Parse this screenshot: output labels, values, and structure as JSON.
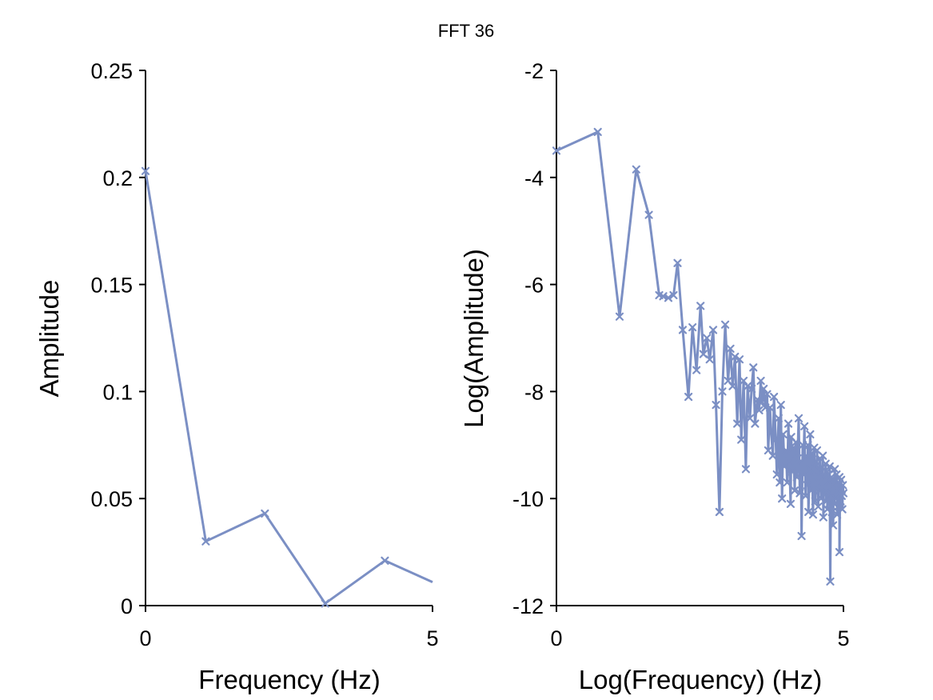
{
  "suptitle": "FFT 36",
  "colors": {
    "series": "#7b8fc4",
    "axis": "#000000"
  },
  "chart_data": [
    {
      "type": "line",
      "title": "",
      "xlabel": "Frequency (Hz)",
      "ylabel": "Amplitude",
      "xlim": [
        0,
        5
      ],
      "ylim": [
        0,
        0.25
      ],
      "xticks": [
        0,
        5
      ],
      "xtick_labels": [
        "0",
        "5"
      ],
      "yticks": [
        0,
        0.05,
        0.1,
        0.15,
        0.2,
        0.25
      ],
      "ytick_labels": [
        "0",
        "0.05",
        "0.1",
        "0.15",
        "0.2",
        "0.25"
      ],
      "grid": false,
      "marker": "x",
      "series": [
        {
          "x": [
            0,
            1.05,
            2.08,
            3.13,
            4.17,
            5.0
          ],
          "y": [
            0.203,
            0.03,
            0.043,
            0.001,
            0.021,
            0.011
          ],
          "marker_count": 5
        }
      ]
    },
    {
      "type": "line",
      "title": "",
      "xlabel": "Log(Frequency) (Hz)",
      "ylabel": "Log(Amplitude)",
      "xlim": [
        0,
        5
      ],
      "ylim": [
        -12,
        -2
      ],
      "xticks": [
        0,
        5
      ],
      "xtick_labels": [
        "0",
        "5"
      ],
      "yticks": [
        -12,
        -10,
        -8,
        -6,
        -4,
        -2
      ],
      "ytick_labels": [
        "-12",
        "-10",
        "-8",
        "-6",
        "-4",
        "-2"
      ],
      "grid": false,
      "marker": "x",
      "series": [
        {
          "x": [
            0.0,
            0.72,
            1.1,
            1.39,
            1.61,
            1.79,
            1.86,
            1.95,
            2.04,
            2.11,
            2.2,
            2.3,
            2.37,
            2.44,
            2.51,
            2.56,
            2.62,
            2.67,
            2.73,
            2.78,
            2.84,
            2.89,
            2.94,
            2.99,
            3.03,
            3.07,
            3.11,
            3.15,
            3.19,
            3.22,
            3.26,
            3.3,
            3.33,
            3.37,
            3.4,
            3.43,
            3.46,
            3.5,
            3.53,
            3.56,
            3.58,
            3.61,
            3.64,
            3.67,
            3.69,
            3.72,
            3.74,
            3.77,
            3.79,
            3.82,
            3.84,
            3.87,
            3.89,
            3.91,
            3.93,
            3.95,
            3.97,
            4.0,
            4.02,
            4.04,
            4.06,
            4.08,
            4.09,
            4.11,
            4.13,
            4.15,
            4.17,
            4.19,
            4.2,
            4.22,
            4.24,
            4.26,
            4.27,
            4.29,
            4.3,
            4.32,
            4.34,
            4.35,
            4.37,
            4.38,
            4.39,
            4.41,
            4.42,
            4.44,
            4.45,
            4.47,
            4.48,
            4.49,
            4.51,
            4.52,
            4.53,
            4.54,
            4.56,
            4.57,
            4.58,
            4.59,
            4.61,
            4.62,
            4.63,
            4.64,
            4.65,
            4.66,
            4.68,
            4.69,
            4.7,
            4.71,
            4.72,
            4.73,
            4.74,
            4.75,
            4.76,
            4.77,
            4.78,
            4.79,
            4.8,
            4.81,
            4.82,
            4.83,
            4.84,
            4.85,
            4.86,
            4.87,
            4.88,
            4.89,
            4.9,
            4.91,
            4.92,
            4.93,
            4.93,
            4.94,
            4.95,
            4.96,
            4.97,
            4.98,
            4.99,
            5.0
          ],
          "y": [
            -3.5,
            -3.15,
            -6.6,
            -3.85,
            -4.7,
            -6.2,
            -6.22,
            -6.25,
            -6.2,
            -5.6,
            -6.85,
            -8.1,
            -6.8,
            -7.6,
            -6.4,
            -7.3,
            -7.0,
            -7.4,
            -6.85,
            -8.25,
            -10.25,
            -8.0,
            -6.75,
            -7.8,
            -7.2,
            -7.9,
            -7.35,
            -8.6,
            -7.4,
            -8.9,
            -7.8,
            -9.45,
            -7.9,
            -8.5,
            -7.95,
            -7.55,
            -8.6,
            -8.15,
            -8.35,
            -7.8,
            -8.2,
            -7.95,
            -8.3,
            -8.05,
            -9.1,
            -8.3,
            -8.75,
            -9.2,
            -8.1,
            -8.9,
            -9.55,
            -8.5,
            -9.7,
            -8.25,
            -10.0,
            -8.8,
            -9.4,
            -9.1,
            -9.7,
            -8.6,
            -9.3,
            -10.1,
            -8.85,
            -9.5,
            -9.05,
            -9.85,
            -8.95,
            -9.6,
            -9.25,
            -8.5,
            -9.9,
            -9.3,
            -10.7,
            -9.0,
            -9.55,
            -8.65,
            -9.95,
            -9.2,
            -9.75,
            -9.0,
            -10.25,
            -9.45,
            -8.8,
            -9.85,
            -9.15,
            -10.3,
            -9.6,
            -9.05,
            -10.05,
            -9.3,
            -9.8,
            -9.1,
            -10.15,
            -9.45,
            -9.85,
            -9.25,
            -10.0,
            -9.5,
            -9.8,
            -9.2,
            -10.35,
            -9.6,
            -9.9,
            -9.35,
            -10.05,
            -9.5,
            -10.2,
            -9.7,
            -9.55,
            -10.1,
            -9.4,
            -11.55,
            -9.9,
            -9.6,
            -10.25,
            -9.75,
            -10.5,
            -9.65,
            -10.1,
            -9.45,
            -9.85,
            -10.0,
            -9.55,
            -10.3,
            -9.7,
            -9.9,
            -10.15,
            -9.6,
            -11.0,
            -9.8,
            -10.05,
            -9.65,
            -9.95,
            -10.2,
            -9.75,
            -9.9
          ]
        }
      ]
    }
  ]
}
